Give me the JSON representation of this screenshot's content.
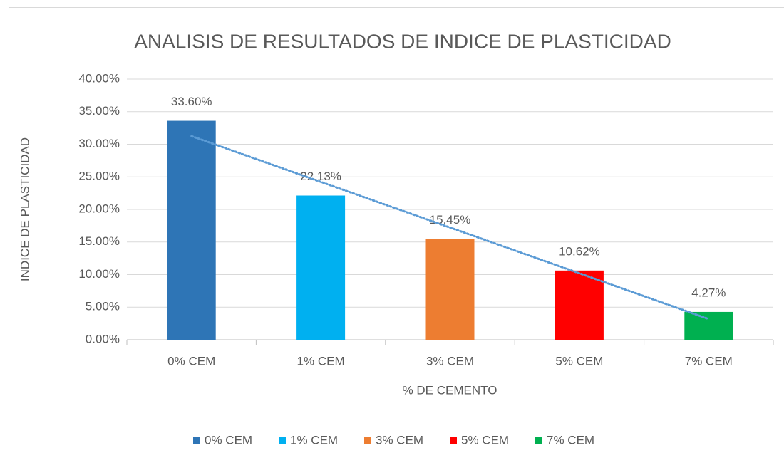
{
  "chart_data": {
    "type": "bar",
    "title": "ANALISIS DE RESULTADOS DE INDICE DE PLASTICIDAD",
    "x_label": "% DE CEMENTO",
    "y_label": "INDICE DE PLASTICIDAD",
    "categories": [
      "0% CEM",
      "1% CEM",
      "3% CEM",
      "5% CEM",
      "7% CEM"
    ],
    "values": [
      33.6,
      22.13,
      15.45,
      10.62,
      4.27
    ],
    "value_labels": [
      "33.60%",
      "22.13%",
      "15.45%",
      "10.62%",
      "4.27%"
    ],
    "colors": [
      "#2e75b6",
      "#00b0f0",
      "#ed7d31",
      "#ff0000",
      "#00b050"
    ],
    "ylim": [
      0,
      40
    ],
    "yticks": [
      {
        "value": 0,
        "label": "0.00%"
      },
      {
        "value": 5,
        "label": "5.00%"
      },
      {
        "value": 10,
        "label": "10.00%"
      },
      {
        "value": 15,
        "label": "15.00%"
      },
      {
        "value": 20,
        "label": "20.00%"
      },
      {
        "value": 25,
        "label": "25.00%"
      },
      {
        "value": 30,
        "label": "30.00%"
      },
      {
        "value": 35,
        "label": "35.00%"
      },
      {
        "value": 40,
        "label": "40.00%"
      }
    ],
    "grid": true,
    "trendline": "linear",
    "trendline_color": "#5b9bd5",
    "legend": "bottom"
  }
}
